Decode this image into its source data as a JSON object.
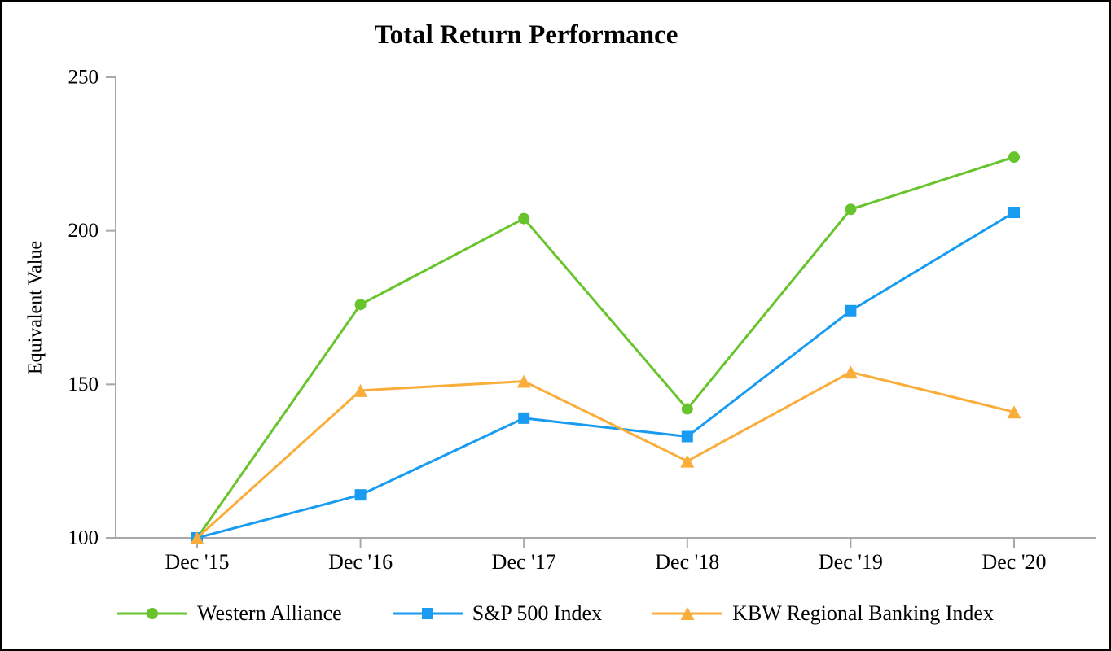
{
  "page": {
    "background": "#ffffff",
    "border_color": "#000000"
  },
  "chart_data": {
    "type": "line",
    "title": "Total Return Performance",
    "xlabel": "",
    "ylabel": "Equivalent Value",
    "categories": [
      "Dec '15",
      "Dec '16",
      "Dec '17",
      "Dec '18",
      "Dec '19",
      "Dec '20"
    ],
    "y_ticks": [
      100,
      150,
      200,
      250
    ],
    "ylim": [
      100,
      250
    ],
    "grid": false,
    "legend_position": "bottom",
    "axis_color": "#a8a8a8",
    "text_color": "#000000",
    "series": [
      {
        "name": "Western Alliance",
        "marker": "circle",
        "color": "#68c42c",
        "values": [
          100,
          176,
          204,
          142,
          207,
          224
        ]
      },
      {
        "name": "S&P 500 Index",
        "marker": "square",
        "color": "#189bf0",
        "values": [
          100,
          114,
          139,
          133,
          174,
          206
        ]
      },
      {
        "name": "KBW Regional Banking Index",
        "marker": "triangle",
        "color": "#f9ad3a",
        "values": [
          100,
          148,
          151,
          125,
          154,
          141
        ]
      }
    ]
  }
}
